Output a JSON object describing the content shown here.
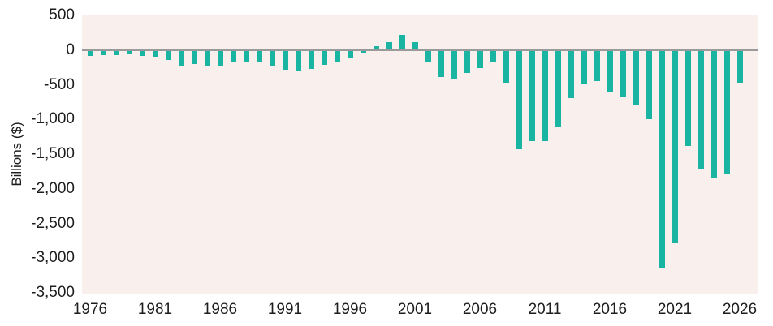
{
  "chart_data": {
    "type": "bar",
    "title": "",
    "xlabel": "",
    "ylabel": "Billions ($)",
    "units": "Billions ($)",
    "x": [
      1976,
      1977,
      1978,
      1979,
      1980,
      1981,
      1982,
      1983,
      1984,
      1985,
      1986,
      1987,
      1988,
      1989,
      1990,
      1991,
      1992,
      1993,
      1994,
      1995,
      1996,
      1997,
      1998,
      1999,
      2000,
      2001,
      2002,
      2003,
      2004,
      2005,
      2006,
      2007,
      2008,
      2009,
      2010,
      2011,
      2012,
      2013,
      2014,
      2015,
      2016,
      2017,
      2018,
      2019,
      2020,
      2021,
      2022,
      2023,
      2024,
      2025,
      2026
    ],
    "values": [
      -74,
      -54,
      -59,
      -41,
      -74,
      -79,
      -128,
      -208,
      -185,
      -212,
      -221,
      -150,
      -155,
      -153,
      -221,
      -269,
      -290,
      -255,
      -203,
      -164,
      -107,
      -22,
      69,
      126,
      236,
      128,
      -158,
      -378,
      -413,
      -318,
      -248,
      -161,
      -459,
      -1413,
      -1294,
      -1300,
      -1087,
      -680,
      -485,
      -438,
      -585,
      -665,
      -779,
      -984,
      -3132,
      -2772,
      -1375,
      -1695,
      -1834,
      -1780,
      -460
    ],
    "y_ticks": [
      {
        "label": "500",
        "value": 500
      },
      {
        "label": "0",
        "value": 0
      },
      {
        "label": "-500",
        "value": -500
      },
      {
        "label": "-1,000",
        "value": -1000
      },
      {
        "label": "-1,500",
        "value": -1500
      },
      {
        "label": "-2,000",
        "value": -2000
      },
      {
        "label": "-2,500",
        "value": -2500
      },
      {
        "label": "-3,000",
        "value": -3000
      },
      {
        "label": "-3,500",
        "value": -3500
      }
    ],
    "x_ticks": [
      {
        "label": "1976",
        "year": 1976
      },
      {
        "label": "1981",
        "year": 1981
      },
      {
        "label": "1986",
        "year": 1986
      },
      {
        "label": "1991",
        "year": 1991
      },
      {
        "label": "1996",
        "year": 1996
      },
      {
        "label": "2001",
        "year": 2001
      },
      {
        "label": "2006",
        "year": 2006
      },
      {
        "label": "2011",
        "year": 2011
      },
      {
        "label": "2016",
        "year": 2016
      },
      {
        "label": "2021",
        "year": 2021
      },
      {
        "label": "2026",
        "year": 2026
      }
    ],
    "ylim": [
      550,
      -3550
    ],
    "xlim": [
      1975,
      2027
    ],
    "grid": "none",
    "legend": "none",
    "colors": {
      "bar": "#1ab4a3",
      "plot_background": "#f9f0ee",
      "page_background": "#ffffff",
      "zero_axis_line": "#9a9a9a",
      "text": "#1d1d1d"
    }
  }
}
